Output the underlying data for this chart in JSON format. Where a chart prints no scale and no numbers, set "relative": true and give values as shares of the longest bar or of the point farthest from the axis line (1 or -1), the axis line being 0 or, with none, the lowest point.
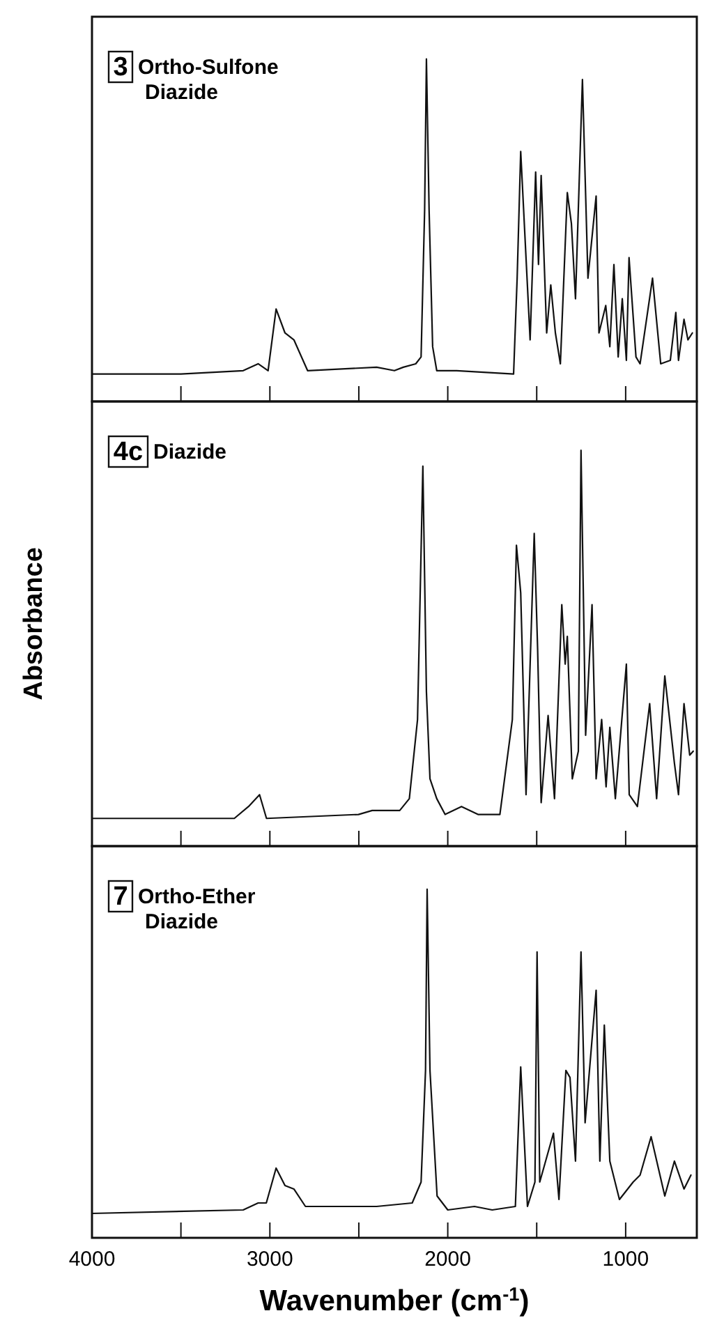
{
  "chart_data": [
    {
      "type": "line",
      "relative": true,
      "annotations": [
        "3",
        "Ortho-Sulfone Diazide"
      ],
      "xlim": [
        4000,
        600
      ],
      "xticks": [
        4000,
        {
          "value": 3500,
          "label": null
        },
        3000,
        {
          "value": 2500,
          "label": null
        },
        2000,
        {
          "value": 1500,
          "label": null
        },
        1000
      ],
      "tick_labels": false,
      "marker": "none",
      "line_style": "solid",
      "x": [
        4000,
        3500,
        3150,
        3066,
        3010,
        2965,
        2915,
        2865,
        2788,
        2400,
        2300,
        2250,
        2180,
        2150,
        2130,
        2120,
        2105,
        2085,
        2062,
        1950,
        1630,
        1610,
        1590,
        1537,
        1506,
        1490,
        1475,
        1444,
        1421,
        1395,
        1367,
        1328,
        1305,
        1282,
        1243,
        1212,
        1166,
        1150,
        1112,
        1089,
        1066,
        1042,
        1019,
        996,
        981,
        942,
        919,
        849,
        803,
        749,
        718,
        703,
        672,
        650,
        625
      ],
      "series": [
        {
          "color": "#111111",
          "values": [
            0.08,
            0.08,
            0.09,
            0.11,
            0.09,
            0.27,
            0.2,
            0.18,
            0.09,
            0.1,
            0.09,
            0.1,
            0.11,
            0.13,
            0.56,
            1,
            0.56,
            0.16,
            0.09,
            0.09,
            0.08,
            0.36,
            0.73,
            0.18,
            0.67,
            0.4,
            0.66,
            0.2,
            0.34,
            0.2,
            0.11,
            0.61,
            0.52,
            0.3,
            0.94,
            0.36,
            0.6,
            0.2,
            0.28,
            0.16,
            0.4,
            0.13,
            0.3,
            0.12,
            0.42,
            0.13,
            0.11,
            0.36,
            0.11,
            0.12,
            0.26,
            0.12,
            0.24,
            0.18,
            0.2
          ]
        }
      ]
    },
    {
      "type": "line",
      "relative": true,
      "annotations": [
        "4c",
        "Diazide"
      ],
      "ylabel": "Absorbance",
      "xlim": [
        4000,
        600
      ],
      "xticks": [
        4000,
        {
          "value": 3500,
          "label": null
        },
        3000,
        {
          "value": 2500,
          "label": null
        },
        2000,
        {
          "value": 1500,
          "label": null
        },
        1000
      ],
      "tick_labels": false,
      "marker": "none",
      "line_style": "solid",
      "x": [
        4000,
        3200,
        3120,
        3058,
        3019,
        2502,
        2425,
        2270,
        2216,
        2170,
        2140,
        2120,
        2100,
        2062,
        2015,
        1923,
        1830,
        1707,
        1637,
        1614,
        1590,
        1560,
        1514,
        1495,
        1475,
        1436,
        1400,
        1359,
        1340,
        1328,
        1300,
        1266,
        1251,
        1225,
        1189,
        1166,
        1135,
        1110,
        1089,
        1058,
        996,
        980,
        934,
        865,
        826,
        780,
        726,
        703,
        672,
        640,
        620
      ],
      "series": [
        {
          "color": "#111111",
          "values": [
            0.07,
            0.07,
            0.1,
            0.13,
            0.07,
            0.08,
            0.09,
            0.09,
            0.12,
            0.32,
            0.96,
            0.39,
            0.17,
            0.12,
            0.08,
            0.1,
            0.08,
            0.08,
            0.32,
            0.76,
            0.64,
            0.13,
            0.79,
            0.5,
            0.11,
            0.33,
            0.12,
            0.61,
            0.46,
            0.53,
            0.17,
            0.24,
            1,
            0.28,
            0.61,
            0.17,
            0.32,
            0.15,
            0.3,
            0.12,
            0.46,
            0.13,
            0.1,
            0.36,
            0.12,
            0.43,
            0.21,
            0.13,
            0.36,
            0.23,
            0.24
          ]
        }
      ]
    },
    {
      "type": "line",
      "relative": true,
      "annotations": [
        "7",
        "Ortho-Ether Diazide"
      ],
      "xlabel": "Wavenumber (cm$^{-1}$)",
      "xlim": [
        4000,
        600
      ],
      "xticks": [
        4000,
        {
          "value": 3500,
          "label": null
        },
        3000,
        {
          "value": 2500,
          "label": null
        },
        2000,
        {
          "value": 1500,
          "label": null
        },
        1000
      ],
      "tick_labels": "x",
      "marker": "none",
      "line_style": "solid",
      "x": [
        4000,
        3150,
        3066,
        3020,
        2965,
        2915,
        2865,
        2800,
        2400,
        2200,
        2150,
        2125,
        2116,
        2100,
        2060,
        2000,
        1850,
        1750,
        1620,
        1590,
        1552,
        1510,
        1498,
        1483,
        1406,
        1375,
        1336,
        1313,
        1282,
        1251,
        1228,
        1166,
        1145,
        1120,
        1089,
        1035,
        958,
        919,
        857,
        780,
        726,
        672,
        633
      ],
      "series": [
        {
          "color": "#111111",
          "values": [
            0.07,
            0.08,
            0.1,
            0.1,
            0.2,
            0.15,
            0.14,
            0.09,
            0.09,
            0.1,
            0.16,
            0.48,
            1,
            0.48,
            0.12,
            0.08,
            0.09,
            0.08,
            0.09,
            0.49,
            0.09,
            0.16,
            0.82,
            0.16,
            0.3,
            0.11,
            0.48,
            0.46,
            0.22,
            0.82,
            0.33,
            0.71,
            0.22,
            0.61,
            0.22,
            0.11,
            0.16,
            0.18,
            0.29,
            0.12,
            0.22,
            0.14,
            0.18
          ]
        }
      ]
    }
  ]
}
